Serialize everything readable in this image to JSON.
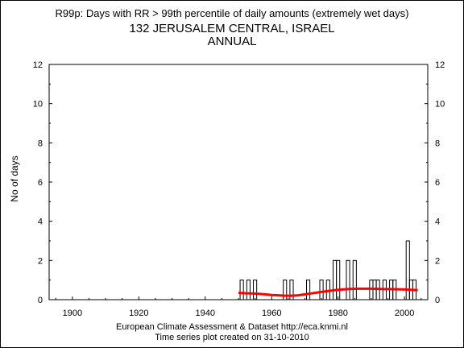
{
  "title": {
    "line1": "R99p: Days with RR > 99th percentile of daily amounts (extremely wet days)",
    "line2": "132 JERUSALEM CENTRAL, ISRAEL",
    "line3": "ANNUAL"
  },
  "footer": {
    "line1": "European Climate Assessment & Dataset  http://eca.knmi.nl",
    "line2": "Time series plot created on 31-10-2010"
  },
  "colors": {
    "bars": "#000000",
    "trend": "#ff0000",
    "axis": "#000000"
  },
  "chart_data": {
    "type": "bar",
    "title": "R99p: Days with RR > 99th percentile of daily amounts (extremely wet days)",
    "subtitle": "132 JERUSALEM CENTRAL, ISRAEL ANNUAL",
    "xlabel": "",
    "ylabel": "No of days",
    "xlim": [
      1893,
      2007
    ],
    "ylim": [
      0,
      12
    ],
    "x_ticks": [
      1900,
      1920,
      1940,
      1960,
      1980,
      2000
    ],
    "y_ticks": [
      0,
      2,
      4,
      6,
      8,
      10,
      12
    ],
    "grid": false,
    "bars_start_year": 1950,
    "bars_end_year": 2004,
    "years": [
      1950,
      1951,
      1952,
      1953,
      1954,
      1955,
      1956,
      1957,
      1958,
      1959,
      1960,
      1961,
      1962,
      1963,
      1964,
      1965,
      1966,
      1967,
      1968,
      1969,
      1970,
      1971,
      1972,
      1973,
      1974,
      1975,
      1976,
      1977,
      1978,
      1979,
      1980,
      1981,
      1982,
      1983,
      1984,
      1985,
      1986,
      1987,
      1988,
      1989,
      1990,
      1991,
      1992,
      1993,
      1994,
      1995,
      1996,
      1997,
      1998,
      1999,
      2000,
      2001,
      2002,
      2003,
      2004
    ],
    "values": [
      0,
      1,
      0,
      1,
      0,
      1,
      0,
      0,
      0,
      0,
      0,
      0,
      0,
      0,
      1,
      0,
      1,
      0,
      0,
      0,
      0,
      1,
      0,
      0,
      0,
      1,
      0,
      1,
      0,
      2,
      2,
      0,
      0,
      2,
      0,
      2,
      0,
      0,
      0,
      0,
      1,
      1,
      1,
      0,
      1,
      0,
      1,
      1,
      0,
      0,
      0,
      3,
      1,
      1,
      0
    ],
    "trend": {
      "name": "",
      "years": [
        1950,
        1952,
        1954,
        1956,
        1958,
        1960,
        1962,
        1964,
        1966,
        1968,
        1970,
        1972,
        1974,
        1976,
        1978,
        1980,
        1982,
        1984,
        1986,
        1988,
        1990,
        1992,
        1994,
        1996,
        1998,
        2000,
        2002,
        2004
      ],
      "values": [
        0.35,
        0.33,
        0.32,
        0.3,
        0.27,
        0.24,
        0.22,
        0.2,
        0.2,
        0.22,
        0.27,
        0.32,
        0.37,
        0.42,
        0.46,
        0.5,
        0.53,
        0.55,
        0.56,
        0.56,
        0.56,
        0.55,
        0.54,
        0.54,
        0.53,
        0.52,
        0.5,
        0.48
      ]
    }
  }
}
